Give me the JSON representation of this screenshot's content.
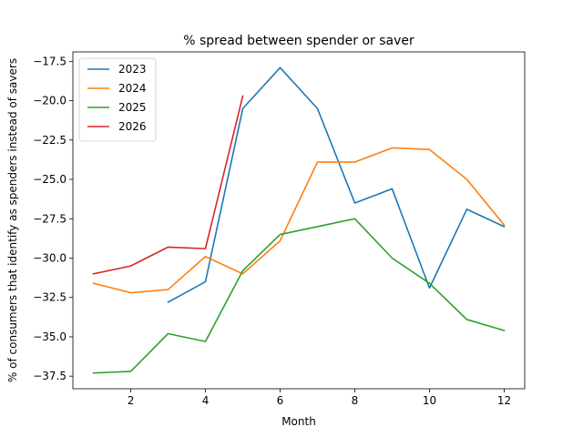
{
  "chart_data": {
    "type": "line",
    "title": "% spread between spender or saver",
    "xlabel": "Month",
    "ylabel": "% of consumers that identify as spenders instead of savers",
    "xlim": [
      0.45,
      12.55
    ],
    "ylim": [
      -38.3,
      -16.9
    ],
    "xticks": [
      2,
      4,
      6,
      8,
      10,
      12
    ],
    "yticks": [
      -37.5,
      -35.0,
      -32.5,
      -30.0,
      -27.5,
      -25.0,
      -22.5,
      -20.0,
      -17.5
    ],
    "ytick_labels": [
      "−37.5",
      "−35.0",
      "−32.5",
      "−30.0",
      "−27.5",
      "−25.0",
      "−22.5",
      "−20.0",
      "−17.5"
    ],
    "grid": false,
    "legend_position": "top-left",
    "series": [
      {
        "name": "2023",
        "color": "#1f77b4",
        "x": [
          3,
          4,
          5,
          6,
          7,
          8,
          9,
          10,
          11,
          12
        ],
        "values": [
          -32.8,
          -31.5,
          -20.5,
          -17.9,
          -20.5,
          -26.5,
          -25.6,
          -31.9,
          -26.9,
          -28.0
        ]
      },
      {
        "name": "2024",
        "color": "#ff7f0e",
        "x": [
          1,
          2,
          3,
          4,
          5,
          6,
          7,
          8,
          9,
          10,
          11,
          12
        ],
        "values": [
          -31.6,
          -32.2,
          -32.0,
          -29.9,
          -31.0,
          -28.9,
          -23.9,
          -23.9,
          -23.0,
          -23.1,
          -25.0,
          -27.9
        ]
      },
      {
        "name": "2025",
        "color": "#2ca02c",
        "x": [
          1,
          2,
          3,
          4,
          5,
          6,
          7,
          8,
          9,
          10,
          11,
          12
        ],
        "values": [
          -37.3,
          -37.2,
          -34.8,
          -35.3,
          -30.8,
          -28.5,
          -28.0,
          -27.5,
          -30.0,
          -31.6,
          -33.9,
          -34.6
        ]
      },
      {
        "name": "2026",
        "color": "#d62728",
        "x": [
          1,
          2,
          3,
          4,
          5
        ],
        "values": [
          -31.0,
          -30.5,
          -29.3,
          -29.4,
          -19.7
        ]
      }
    ]
  }
}
